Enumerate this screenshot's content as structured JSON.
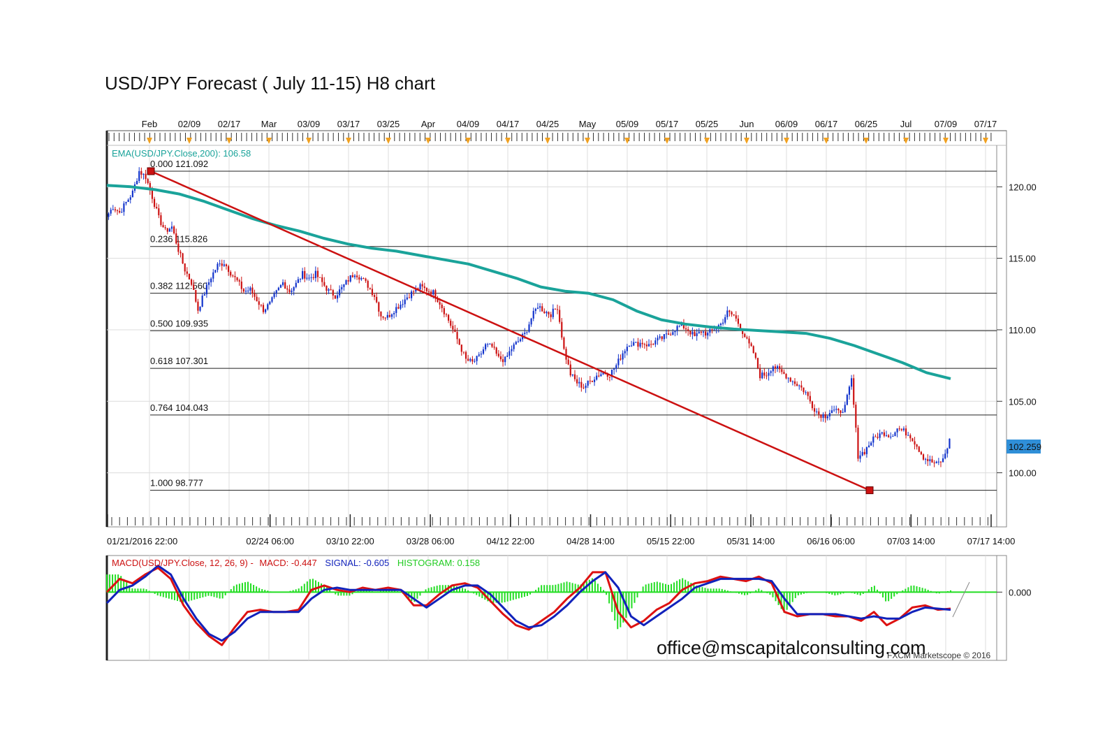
{
  "title": "USD/JPY Forecast ( July 11-15) H8 chart",
  "email": "office@mscapitalconsulting.com",
  "copyright": "FXCM Marketscope © 2016",
  "colors": {
    "ema": "#1aa39a",
    "trendline": "#cc1111",
    "macd": "#dd1111",
    "signal": "#1122bb",
    "histogram": "#22dd22",
    "price_label_bg": "#2f8fd8",
    "candle_up": "#1133cc",
    "candle_down": "#cc1111"
  },
  "chart_data": [
    {
      "type": "candlestick",
      "ema_label": "EMA(USD/JPY.Close,200): 106.58",
      "ema_last": 106.58,
      "current_price": 102.259,
      "current_price_label": "102.259",
      "ylim": [
        96.9,
        122.9
      ],
      "y_ticks": [
        {
          "value": 120,
          "label": "120.00"
        },
        {
          "value": 115,
          "label": "115.00"
        },
        {
          "value": 110,
          "label": "110.00"
        },
        {
          "value": 105,
          "label": "105.00"
        },
        {
          "value": 100,
          "label": "100.00"
        }
      ],
      "top_axis_labels": [
        "Feb",
        "02/09",
        "02/17",
        "Mar",
        "03/09",
        "03/17",
        "03/25",
        "Apr",
        "04/09",
        "04/17",
        "04/25",
        "May",
        "05/09",
        "05/17",
        "05/25",
        "Jun",
        "06/09",
        "06/17",
        "06/25",
        "Jul",
        "07/09",
        "07/17"
      ],
      "bottom_axis_labels": [
        "01/21/2016 22:00",
        "02/24 06:00",
        "03/10 22:00",
        "03/28 06:00",
        "04/12 22:00",
        "04/28 14:00",
        "05/15 22:00",
        "05/31 14:00",
        "06/16 06:00",
        "07/03 14:00",
        "07/17 14:00"
      ],
      "fibonacci": [
        {
          "label": "0.000 121.092",
          "value": 121.092
        },
        {
          "label": "0.236 115.826",
          "value": 115.826
        },
        {
          "label": "0.382 112.560",
          "value": 112.56
        },
        {
          "label": "0.500 109.935",
          "value": 109.935
        },
        {
          "label": "0.618 107.301",
          "value": 107.301
        },
        {
          "label": "0.764 104.043",
          "value": 104.043
        },
        {
          "label": "1.000 98.777",
          "value": 98.777
        }
      ],
      "trendline": {
        "start": 121.092,
        "end": 98.777
      },
      "price_path": [
        117.9,
        118.6,
        118.2,
        118.9,
        119.6,
        121.1,
        120.7,
        119.3,
        117.8,
        116.9,
        117.2,
        115.6,
        114.2,
        113.3,
        111.4,
        112.6,
        113.7,
        114.5,
        114.7,
        114.0,
        113.4,
        112.7,
        112.8,
        112.1,
        111.4,
        111.8,
        112.6,
        113.3,
        112.7,
        113.2,
        113.9,
        113.6,
        113.9,
        113.3,
        112.7,
        112.4,
        112.9,
        113.5,
        114.0,
        113.6,
        113.1,
        112.4,
        111.0,
        110.9,
        111.4,
        111.8,
        112.3,
        112.7,
        113.0,
        112.8,
        112.6,
        111.9,
        111.0,
        110.0,
        109.0,
        107.9,
        107.7,
        108.1,
        108.9,
        108.8,
        108.0,
        107.9,
        108.7,
        109.2,
        109.7,
        110.8,
        111.7,
        111.3,
        111.1,
        111.6,
        108.6,
        106.9,
        106.3,
        106.0,
        106.4,
        106.8,
        107.0,
        106.9,
        107.5,
        108.4,
        109.1,
        109.0,
        109.1,
        108.9,
        109.2,
        109.4,
        109.7,
        110.1,
        110.3,
        110.0,
        109.5,
        109.9,
        109.7,
        110.1,
        110.4,
        111.2,
        111.0,
        110.2,
        109.2,
        108.4,
        106.8,
        106.9,
        107.5,
        107.1,
        106.8,
        106.4,
        106.1,
        105.6,
        104.7,
        104.1,
        104.0,
        104.4,
        104.2,
        104.6,
        106.5,
        101.2,
        101.5,
        102.2,
        102.6,
        102.8,
        102.6,
        103.1,
        102.9,
        102.6,
        101.9,
        101.1,
        100.8,
        100.6,
        100.9,
        102.26
      ],
      "ema_path": [
        120.1,
        120.0,
        119.8,
        119.5,
        119.0,
        118.4,
        117.8,
        117.3,
        116.9,
        116.4,
        116.0,
        115.7,
        115.5,
        115.2,
        114.9,
        114.6,
        114.1,
        113.6,
        113.0,
        112.7,
        112.55,
        112.1,
        111.3,
        110.7,
        110.4,
        110.2,
        110.05,
        109.95,
        109.85,
        109.75,
        109.4,
        108.9,
        108.3,
        107.7,
        107.0,
        106.58
      ],
      "macd_panel": {
        "label_prefix": "MACD(USD/JPY.Close, 12, 26, 9) -",
        "macd_label": "MACD: -0.447",
        "signal_label": "SIGNAL: -0.605",
        "histogram_label": "HISTOGRAM: 0.158",
        "macd_value": -0.447,
        "signal_value": -0.605,
        "histogram_value": 0.158,
        "zero_label": "0.000",
        "ylim": [
          -3.0,
          1.5
        ],
        "macd_path": [
          0.0,
          0.6,
          0.4,
          0.8,
          1.1,
          0.6,
          -0.6,
          -1.4,
          -2.0,
          -2.4,
          -1.6,
          -0.9,
          -0.8,
          -0.9,
          -0.9,
          -0.8,
          0.1,
          0.3,
          0.1,
          0.0,
          0.2,
          0.1,
          0.2,
          0.1,
          -0.6,
          -0.6,
          -0.1,
          0.3,
          0.4,
          0.2,
          -0.4,
          -1.0,
          -1.5,
          -1.7,
          -1.3,
          -0.9,
          -0.3,
          0.2,
          0.9,
          0.9,
          -0.9,
          -1.6,
          -1.3,
          -0.8,
          -0.5,
          0.1,
          0.4,
          0.5,
          0.7,
          0.6,
          0.5,
          0.7,
          0.4,
          -0.9,
          -1.1,
          -1.0,
          -1.0,
          -1.1,
          -1.1,
          -1.3,
          -0.9,
          -1.5,
          -1.2,
          -0.7,
          -0.6,
          -0.8,
          -0.75
        ],
        "signal_path": [
          -0.5,
          0.1,
          0.3,
          0.7,
          1.2,
          0.8,
          -0.3,
          -1.2,
          -1.9,
          -2.2,
          -1.8,
          -1.2,
          -0.9,
          -0.9,
          -0.9,
          -0.9,
          -0.3,
          0.1,
          0.2,
          0.1,
          0.1,
          0.1,
          0.1,
          0.1,
          -0.3,
          -0.7,
          -0.3,
          0.1,
          0.3,
          0.3,
          -0.1,
          -0.7,
          -1.3,
          -1.6,
          -1.5,
          -1.1,
          -0.6,
          0.0,
          0.5,
          0.9,
          0.2,
          -1.1,
          -1.5,
          -1.1,
          -0.7,
          -0.3,
          0.2,
          0.4,
          0.6,
          0.6,
          0.6,
          0.6,
          0.5,
          -0.3,
          -1.0,
          -1.0,
          -1.0,
          -1.0,
          -1.1,
          -1.2,
          -1.1,
          -1.2,
          -1.2,
          -0.9,
          -0.7,
          -0.75,
          -0.8
        ]
      }
    }
  ]
}
